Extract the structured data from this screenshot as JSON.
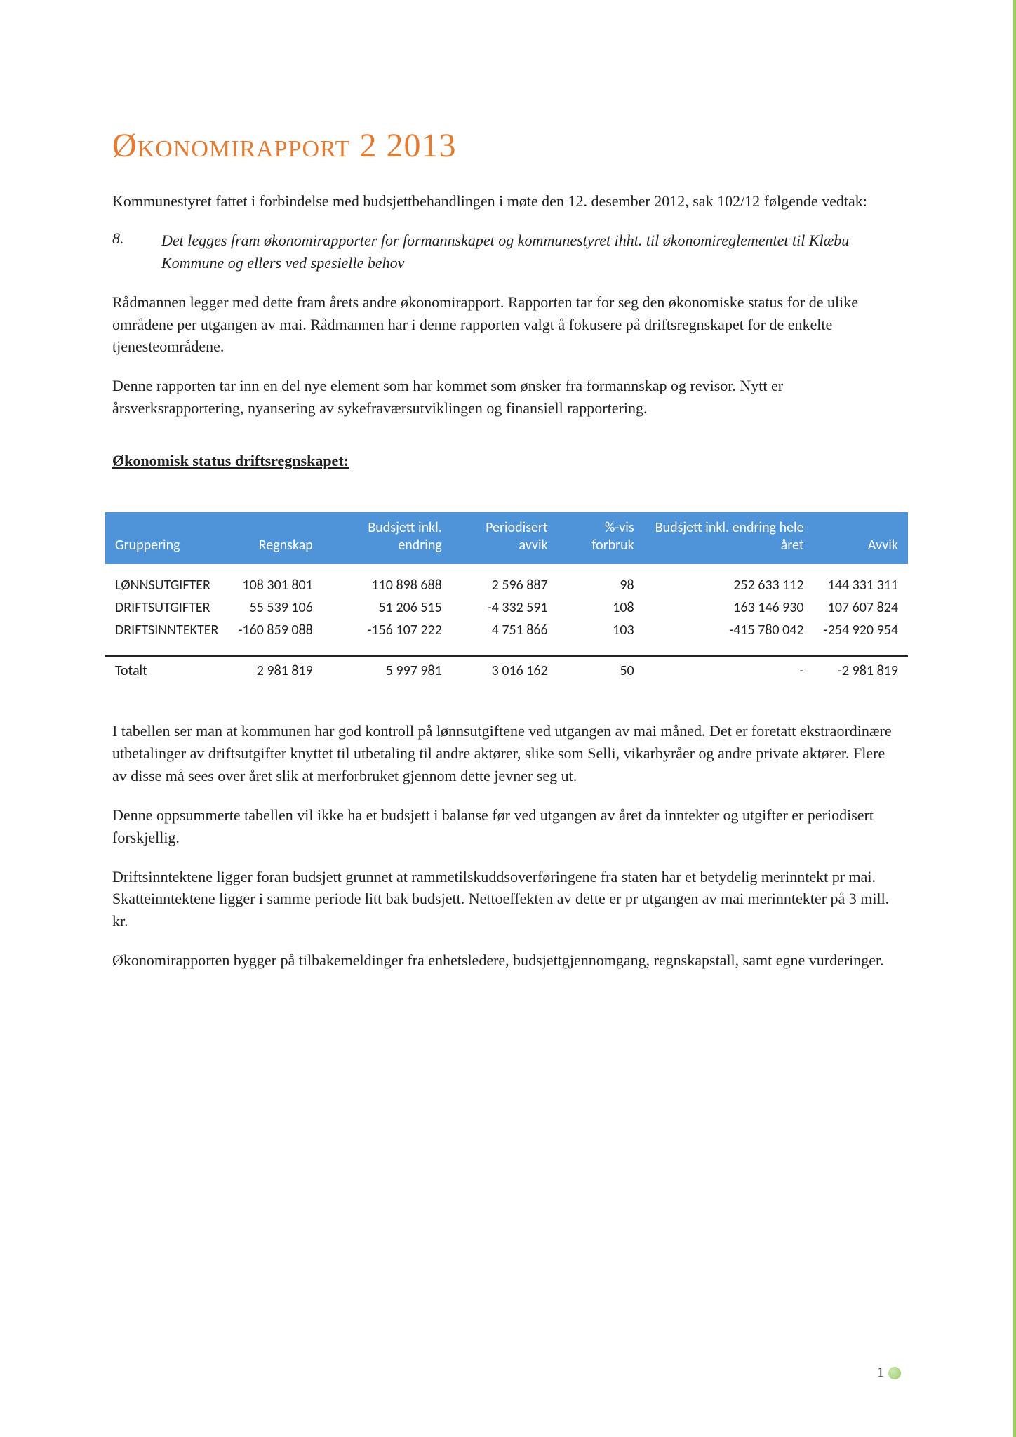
{
  "title": "Økonomirapport 2 2013",
  "intro_p": "Kommunestyret fattet i forbindelse med budsjettbehandlingen i møte den 12. desember 2012, sak 102/12 følgende vedtak:",
  "item_num": "8.",
  "item_text": "Det legges fram økonomirapporter for formannskapet og kommunestyret ihht. til økonomireglementet til Klæbu Kommune og ellers ved spesielle behov",
  "p2": "Rådmannen legger med dette fram årets andre økonomirapport. Rapporten tar for seg den økonomiske status for de ulike områdene per utgangen av mai. Rådmannen har i denne rapporten valgt å fokusere på driftsregnskapet for de enkelte tjenesteområdene.",
  "p3": "Denne rapporten tar inn en del nye element som har kommet som ønsker fra formannskap og revisor. Nytt er årsverksrapportering, nyansering av sykefraværsutviklingen og finansiell rapportering.",
  "section_heading": "Økonomisk status driftsregnskapet:",
  "table": {
    "header_bg": "#4f93d8",
    "header_fg": "#ffffff",
    "font_family": "Calibri",
    "font_size_pt": 15,
    "columns": [
      {
        "label": "Gruppering",
        "align": "left"
      },
      {
        "label": "Regnskap",
        "align": "right"
      },
      {
        "label": "Budsjett inkl. endring",
        "align": "right"
      },
      {
        "label": "Periodisert avvik",
        "align": "right"
      },
      {
        "label": "%-vis forbruk",
        "align": "right"
      },
      {
        "label": "Budsjett inkl. endring hele året",
        "align": "right"
      },
      {
        "label": "Avvik",
        "align": "right"
      }
    ],
    "rows": [
      [
        "LØNNSUTGIFTER",
        "108 301 801",
        "110 898 688",
        "2 596 887",
        "98",
        "252 633 112",
        "144 331 311"
      ],
      [
        "DRIFTSUTGIFTER",
        "55 539 106",
        "51 206 515",
        "-4 332 591",
        "108",
        "163 146 930",
        "107 607 824"
      ],
      [
        "DRIFTSINNTEKTER",
        "-160 859 088",
        "-156 107 222",
        "4 751 866",
        "103",
        "-415 780 042",
        "-254 920 954"
      ]
    ],
    "total": [
      "Totalt",
      "2 981 819",
      "5 997 981",
      "3 016 162",
      "50",
      "-",
      "-2 981 819"
    ]
  },
  "p4": "I tabellen ser man at kommunen har god kontroll på lønnsutgiftene ved utgangen av mai måned.  Det er foretatt ekstraordinære utbetalinger av driftsutgifter knyttet til utbetaling til andre aktører, slike som Selli, vikarbyråer og andre private aktører. Flere av disse må sees over året slik at merforbruket gjennom dette jevner seg ut.",
  "p5": "Denne oppsummerte tabellen vil ikke ha et budsjett i balanse før ved utgangen av året da inntekter og utgifter er periodisert forskjellig.",
  "p6": "Driftsinntektene ligger foran budsjett grunnet at rammetilskuddsoverføringene fra staten har et betydelig merinntekt pr mai. Skatteinntektene ligger i samme periode litt bak budsjett. Nettoeffekten av dette er pr utgangen av mai merinntekter på 3 mill. kr.",
  "p7": "Økonomirapporten bygger på tilbakemeldinger fra enhetsledere, budsjettgjennomgang, regnskapstall, samt egne vurderinger.",
  "page_number": "1",
  "colors": {
    "title": "#e67a2e",
    "text": "#222222",
    "accent_border": "#9ccc65",
    "table_header_bg": "#4f93d8",
    "table_header_fg": "#ffffff",
    "table_rule": "#222222",
    "background": "#ffffff"
  }
}
